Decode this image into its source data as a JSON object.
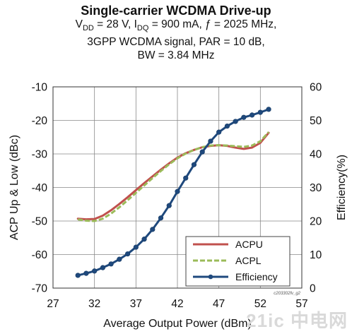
{
  "header": {
    "title": "Single-carrier WCDMA Drive-up",
    "line1_vdd_prefix": "V",
    "line1_vdd_sub": "DD",
    "line1_vdd_rest": " = 28 V, I",
    "line1_idq_sub": "DQ",
    "line1_rest": " = 900 mA, ƒ = 2025 MHz,",
    "line2": "3GPP WCDMA signal, PAR = 10 dB,",
    "line3": "BW = 3.84 MHz"
  },
  "chart_data": {
    "type": "line",
    "title": "Single-carrier WCDMA Drive-up",
    "xlabel": "Average Output Power (dBm)",
    "ylabel_left": "ACP Up & Low (dBc)",
    "ylabel_right": "Efficiency(%)",
    "xlim": [
      27,
      57
    ],
    "ylim_left": [
      -70,
      -10
    ],
    "ylim_right": [
      0,
      60
    ],
    "x_ticks": [
      27,
      32,
      37,
      42,
      47,
      52,
      57
    ],
    "y_ticks_left": [
      -10,
      -20,
      -30,
      -40,
      -50,
      -60,
      -70
    ],
    "y_ticks_right": [
      60,
      50,
      40,
      30,
      20,
      10,
      0
    ],
    "grid": true,
    "legend_position": "bottom-right",
    "colors": {
      "ACPU": "#c0504d",
      "ACPL": "#9bbb59",
      "Efficiency": "#1f497d"
    },
    "series": [
      {
        "name": "ACPU",
        "axis": "left",
        "style": "solid",
        "x": [
          30,
          31,
          32,
          33,
          34,
          35,
          36,
          37,
          38,
          39,
          40,
          41,
          42,
          43,
          44,
          45,
          46,
          47,
          48,
          49,
          50,
          51,
          52,
          53
        ],
        "y": [
          -49.3,
          -49.5,
          -49.4,
          -48.4,
          -46.8,
          -44.9,
          -42.9,
          -40.8,
          -38.7,
          -36.7,
          -34.7,
          -32.8,
          -31.1,
          -29.8,
          -28.8,
          -28.0,
          -27.6,
          -27.4,
          -27.6,
          -28.1,
          -28.5,
          -28.1,
          -26.7,
          -23.7
        ]
      },
      {
        "name": "ACPL",
        "axis": "left",
        "style": "dashed",
        "x": [
          30,
          31,
          32,
          33,
          34,
          35,
          36,
          37,
          38,
          39,
          40,
          41,
          42,
          43,
          44,
          45,
          46,
          47,
          48,
          49,
          50,
          51,
          52,
          53
        ],
        "y": [
          -49.5,
          -49.9,
          -50.0,
          -49.3,
          -47.8,
          -45.9,
          -43.8,
          -41.6,
          -39.4,
          -37.2,
          -35.1,
          -33.1,
          -31.3,
          -29.9,
          -28.8,
          -28.0,
          -27.5,
          -27.4,
          -27.5,
          -27.7,
          -27.9,
          -27.5,
          -26.2,
          -23.5
        ]
      },
      {
        "name": "Efficiency",
        "axis": "right",
        "style": "solid-marker",
        "x": [
          30,
          31,
          32,
          33,
          34,
          35,
          36,
          37,
          38,
          39,
          40,
          41,
          42,
          43,
          44,
          45,
          46,
          47,
          48,
          49,
          50,
          51,
          52,
          53
        ],
        "y": [
          3.8,
          4.4,
          5.1,
          6.1,
          7.2,
          8.6,
          10.2,
          12.2,
          14.6,
          17.5,
          20.9,
          24.6,
          28.8,
          32.8,
          36.8,
          40.6,
          43.8,
          46.5,
          48.3,
          49.7,
          50.9,
          51.6,
          52.4,
          53.3
        ]
      }
    ]
  },
  "figure_code": "c203302fv_g2",
  "watermark": "21ic 中电网"
}
